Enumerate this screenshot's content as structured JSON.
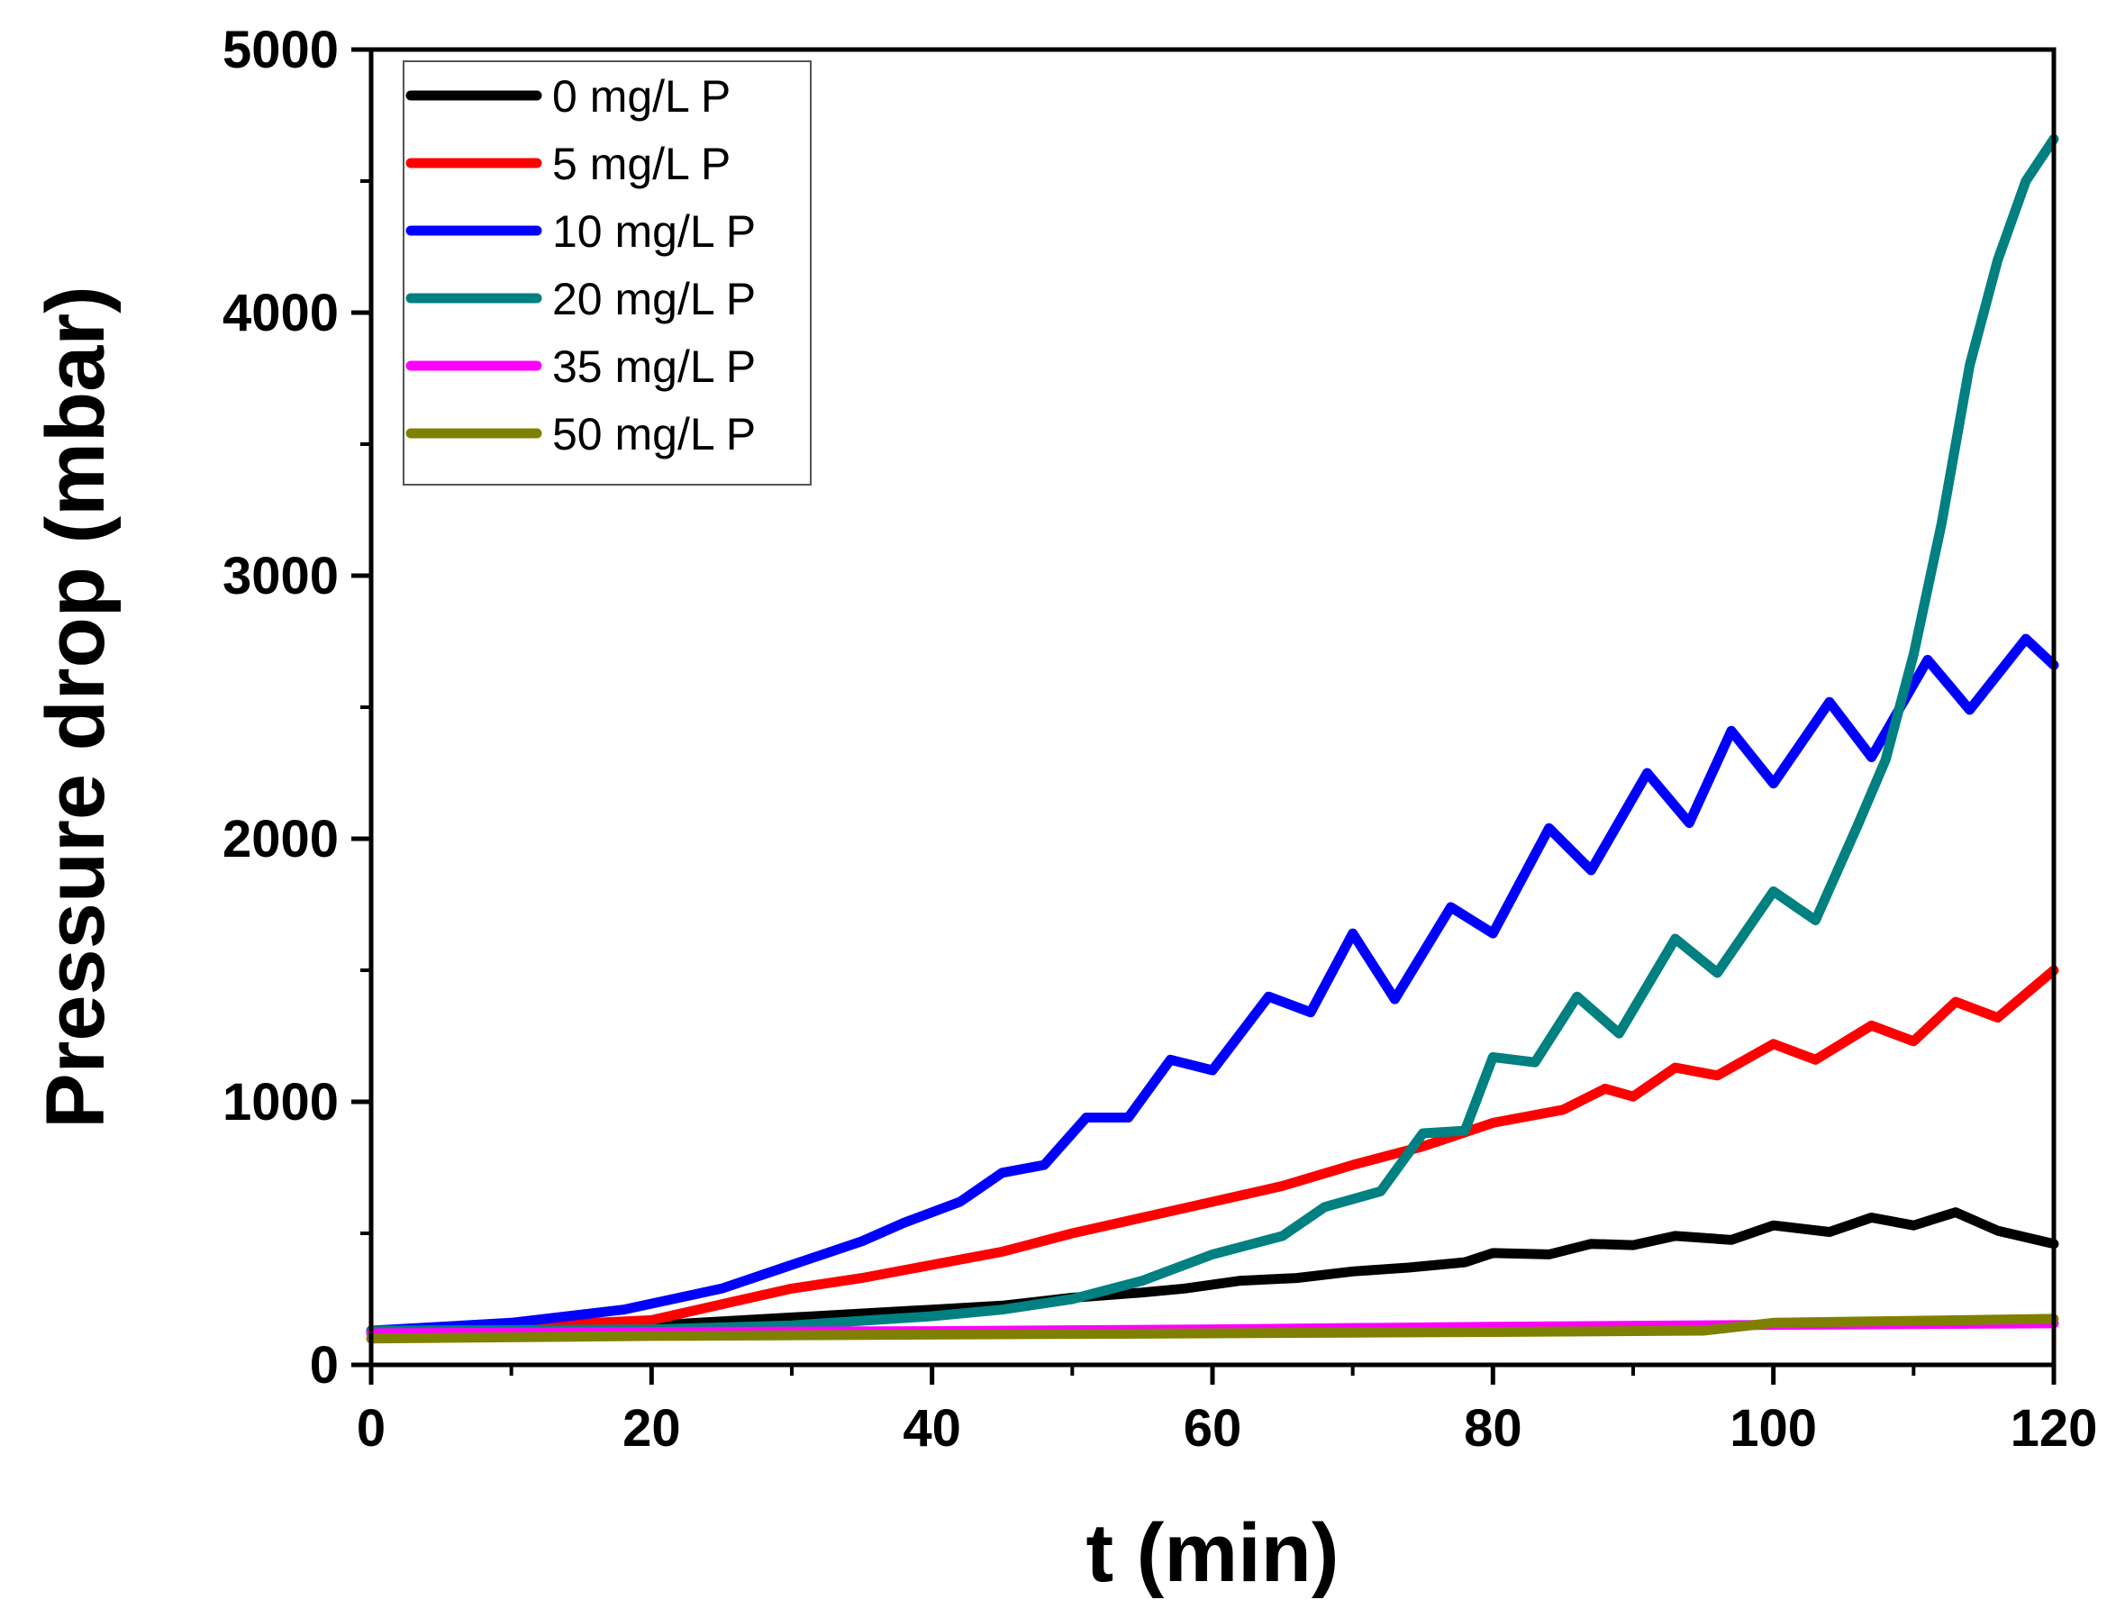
{
  "chart_data": {
    "type": "line",
    "title": "",
    "xlabel": "t (min)",
    "ylabel": "Pressure drop (mbar)",
    "xlim": [
      0,
      120
    ],
    "ylim": [
      0,
      5000
    ],
    "xticks": [
      0,
      20,
      40,
      60,
      80,
      100,
      120
    ],
    "yticks": [
      0,
      1000,
      2000,
      3000,
      4000,
      5000
    ],
    "grid": false,
    "legend_position": "top-left",
    "series": [
      {
        "name": "0 mg/L P",
        "color": "#000000",
        "points": [
          [
            0,
            130
          ],
          [
            10,
            140
          ],
          [
            20,
            150
          ],
          [
            30,
            180
          ],
          [
            40,
            210
          ],
          [
            45,
            225
          ],
          [
            50,
            255
          ],
          [
            55,
            275
          ],
          [
            58,
            290
          ],
          [
            62,
            320
          ],
          [
            66,
            330
          ],
          [
            70,
            355
          ],
          [
            74,
            370
          ],
          [
            78,
            390
          ],
          [
            80,
            425
          ],
          [
            84,
            420
          ],
          [
            87,
            460
          ],
          [
            90,
            455
          ],
          [
            93,
            490
          ],
          [
            97,
            475
          ],
          [
            100,
            530
          ],
          [
            104,
            505
          ],
          [
            107,
            560
          ],
          [
            110,
            530
          ],
          [
            113,
            580
          ],
          [
            116,
            510
          ],
          [
            120,
            460
          ]
        ]
      },
      {
        "name": "5 mg/L P",
        "color": "#ff0000",
        "points": [
          [
            0,
            130
          ],
          [
            10,
            145
          ],
          [
            20,
            170
          ],
          [
            25,
            230
          ],
          [
            30,
            290
          ],
          [
            35,
            330
          ],
          [
            40,
            380
          ],
          [
            45,
            430
          ],
          [
            50,
            500
          ],
          [
            55,
            560
          ],
          [
            60,
            620
          ],
          [
            65,
            680
          ],
          [
            70,
            760
          ],
          [
            75,
            830
          ],
          [
            80,
            920
          ],
          [
            85,
            970
          ],
          [
            88,
            1050
          ],
          [
            90,
            1020
          ],
          [
            93,
            1130
          ],
          [
            96,
            1100
          ],
          [
            100,
            1220
          ],
          [
            103,
            1160
          ],
          [
            107,
            1290
          ],
          [
            110,
            1230
          ],
          [
            113,
            1380
          ],
          [
            116,
            1320
          ],
          [
            120,
            1500
          ]
        ]
      },
      {
        "name": "10 mg/L P",
        "color": "#0000ff",
        "points": [
          [
            0,
            130
          ],
          [
            10,
            160
          ],
          [
            18,
            210
          ],
          [
            25,
            290
          ],
          [
            30,
            380
          ],
          [
            35,
            470
          ],
          [
            38,
            540
          ],
          [
            42,
            620
          ],
          [
            45,
            730
          ],
          [
            48,
            760
          ],
          [
            51,
            940
          ],
          [
            54,
            940
          ],
          [
            57,
            1160
          ],
          [
            60,
            1120
          ],
          [
            64,
            1400
          ],
          [
            67,
            1340
          ],
          [
            70,
            1640
          ],
          [
            73,
            1390
          ],
          [
            77,
            1740
          ],
          [
            80,
            1640
          ],
          [
            84,
            2040
          ],
          [
            87,
            1880
          ],
          [
            91,
            2250
          ],
          [
            94,
            2060
          ],
          [
            97,
            2410
          ],
          [
            100,
            2210
          ],
          [
            104,
            2520
          ],
          [
            107,
            2310
          ],
          [
            111,
            2680
          ],
          [
            114,
            2490
          ],
          [
            118,
            2760
          ],
          [
            120,
            2660
          ]
        ]
      },
      {
        "name": "20 mg/L P",
        "color": "#008080",
        "points": [
          [
            0,
            130
          ],
          [
            20,
            135
          ],
          [
            30,
            150
          ],
          [
            40,
            185
          ],
          [
            45,
            210
          ],
          [
            50,
            250
          ],
          [
            55,
            320
          ],
          [
            60,
            420
          ],
          [
            65,
            490
          ],
          [
            68,
            600
          ],
          [
            72,
            660
          ],
          [
            75,
            880
          ],
          [
            78,
            890
          ],
          [
            80,
            1170
          ],
          [
            83,
            1150
          ],
          [
            86,
            1400
          ],
          [
            89,
            1260
          ],
          [
            93,
            1620
          ],
          [
            96,
            1490
          ],
          [
            100,
            1800
          ],
          [
            103,
            1690
          ],
          [
            106,
            2050
          ],
          [
            108,
            2300
          ],
          [
            110,
            2700
          ],
          [
            112,
            3200
          ],
          [
            114,
            3800
          ],
          [
            116,
            4200
          ],
          [
            118,
            4500
          ],
          [
            120,
            4660
          ]
        ]
      },
      {
        "name": "35 mg/L P",
        "color": "#ff00ff",
        "points": [
          [
            0,
            120
          ],
          [
            20,
            125
          ],
          [
            40,
            128
          ],
          [
            60,
            135
          ],
          [
            80,
            145
          ],
          [
            100,
            152
          ],
          [
            120,
            158
          ]
        ]
      },
      {
        "name": "50 mg/L P",
        "color": "#808000",
        "points": [
          [
            0,
            100
          ],
          [
            20,
            110
          ],
          [
            40,
            115
          ],
          [
            60,
            120
          ],
          [
            80,
            125
          ],
          [
            95,
            130
          ],
          [
            100,
            160
          ],
          [
            120,
            175
          ]
        ]
      }
    ]
  }
}
